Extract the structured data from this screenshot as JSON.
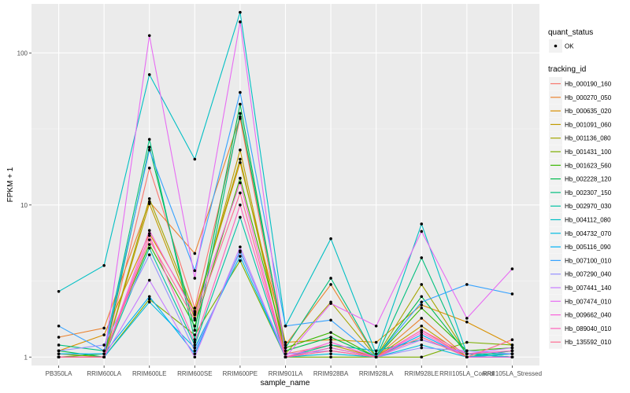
{
  "chart_data": {
    "type": "line",
    "title": "",
    "xlabel": "sample_name",
    "ylabel": "FPKM + 1",
    "yscale": "log10",
    "ylim": [
      0.88,
      210
    ],
    "yticks": [
      1,
      10,
      100
    ],
    "ytick_labels": [
      "1",
      "10",
      "100"
    ],
    "grid": true,
    "categories": [
      "PB350LA",
      "RRIM600LA",
      "RRIM600LE",
      "RRIM600SE",
      "RRIM600PE",
      "RRIM901LA",
      "RRIM928BA",
      "RRIM928LA",
      "RRIM928LE",
      "RRII105LA_Control",
      "RRII105LA_Stressed"
    ],
    "point_legend": {
      "title": "quant_status",
      "entries": [
        {
          "label": "OK",
          "symbol": "point"
        }
      ]
    },
    "legend": {
      "title": "tracking_id",
      "position": "right"
    },
    "series": [
      {
        "name": "Hb_000190_160",
        "color": "#F8766D",
        "values": [
          1.0,
          1.0,
          17.5,
          2.1,
          37,
          1.05,
          1.2,
          1.0,
          1.5,
          1.0,
          1.0
        ]
      },
      {
        "name": "Hb_000270_050",
        "color": "#EA8331",
        "values": [
          1.35,
          1.55,
          10.5,
          4.8,
          38,
          1.2,
          3.0,
          1.0,
          1.8,
          1.0,
          1.05
        ]
      },
      {
        "name": "Hb_000635_020",
        "color": "#D89000",
        "values": [
          1.1,
          1.4,
          6.5,
          2.0,
          19,
          1.25,
          1.3,
          1.25,
          2.2,
          1.7,
          1.2
        ]
      },
      {
        "name": "Hb_001091_060",
        "color": "#C09B00",
        "values": [
          1.0,
          1.0,
          10.2,
          1.8,
          23,
          1.0,
          1.2,
          1.0,
          1.6,
          1.0,
          1.1
        ]
      },
      {
        "name": "Hb_001136_080",
        "color": "#A3A500",
        "values": [
          1.05,
          1.0,
          11.0,
          1.95,
          20,
          1.05,
          2.3,
          1.0,
          3.0,
          1.05,
          1.0
        ]
      },
      {
        "name": "Hb_001431_100",
        "color": "#7CAE00",
        "values": [
          1.0,
          1.0,
          2.4,
          1.4,
          4.3,
          1.0,
          1.0,
          1.0,
          1.0,
          1.25,
          1.2
        ]
      },
      {
        "name": "Hb_001623_560",
        "color": "#39B600",
        "values": [
          1.0,
          1.05,
          5.5,
          1.6,
          15,
          1.15,
          1.45,
          1.0,
          2.1,
          1.1,
          1.15
        ]
      },
      {
        "name": "Hb_002228_120",
        "color": "#00BB4E",
        "values": [
          1.1,
          1.0,
          24,
          1.5,
          46,
          1.1,
          1.35,
          1.0,
          2.5,
          1.05,
          1.0
        ]
      },
      {
        "name": "Hb_002307_150",
        "color": "#00BF7D",
        "values": [
          1.2,
          1.1,
          27,
          1.3,
          40,
          1.15,
          3.3,
          1.0,
          4.5,
          1.0,
          1.1
        ]
      },
      {
        "name": "Hb_002970_030",
        "color": "#00C1A3",
        "values": [
          1.0,
          1.0,
          5.2,
          1.2,
          8.3,
          1.0,
          1.2,
          1.1,
          1.3,
          1.05,
          1.05
        ]
      },
      {
        "name": "Hb_004112_080",
        "color": "#00BFC4",
        "values": [
          2.7,
          4.0,
          72,
          20,
          185,
          1.6,
          6.0,
          1.05,
          7.5,
          1.05,
          1.0
        ]
      },
      {
        "name": "Hb_004732_070",
        "color": "#00BAE0",
        "values": [
          1.0,
          1.0,
          2.3,
          1.15,
          4.6,
          1.0,
          1.05,
          1.0,
          1.2,
          1.0,
          1.05
        ]
      },
      {
        "name": "Hb_005116_090",
        "color": "#00B0F6",
        "values": [
          1.05,
          1.05,
          2.5,
          1.05,
          5.0,
          1.0,
          1.15,
          1.0,
          1.4,
          1.0,
          1.0
        ]
      },
      {
        "name": "Hb_007100_010",
        "color": "#35A2FF",
        "values": [
          1.6,
          1.1,
          23,
          3.7,
          55,
          1.6,
          1.75,
          1.0,
          2.3,
          3.0,
          2.6
        ]
      },
      {
        "name": "Hb_007290_040",
        "color": "#9590FF",
        "values": [
          1.1,
          1.2,
          4.7,
          1.1,
          4.9,
          1.05,
          1.1,
          1.0,
          1.15,
          1.1,
          1.05
        ]
      },
      {
        "name": "Hb_007441_140",
        "color": "#C77CFF",
        "values": [
          1.0,
          1.0,
          3.2,
          1.0,
          5.3,
          1.0,
          1.1,
          1.0,
          1.3,
          1.05,
          1.15
        ]
      },
      {
        "name": "Hb_007474_010",
        "color": "#E76BF3",
        "values": [
          1.0,
          1.0,
          130,
          3.3,
          160,
          1.0,
          2.25,
          1.6,
          6.7,
          1.8,
          3.8
        ]
      },
      {
        "name": "Hb_009662_040",
        "color": "#FA62DB",
        "values": [
          1.0,
          1.0,
          6.8,
          1.9,
          14,
          1.0,
          1.25,
          1.0,
          1.45,
          1.0,
          1.0
        ]
      },
      {
        "name": "Hb_089040_010",
        "color": "#FF62BC",
        "values": [
          1.0,
          1.0,
          6.3,
          1.25,
          10,
          1.0,
          1.15,
          1.0,
          1.5,
          1.05,
          1.1
        ]
      },
      {
        "name": "Hb_135592_010",
        "color": "#FF6C91",
        "values": [
          1.0,
          1.0,
          5.9,
          1.75,
          12,
          1.0,
          1.1,
          1.0,
          1.35,
          1.0,
          1.3
        ]
      }
    ]
  }
}
